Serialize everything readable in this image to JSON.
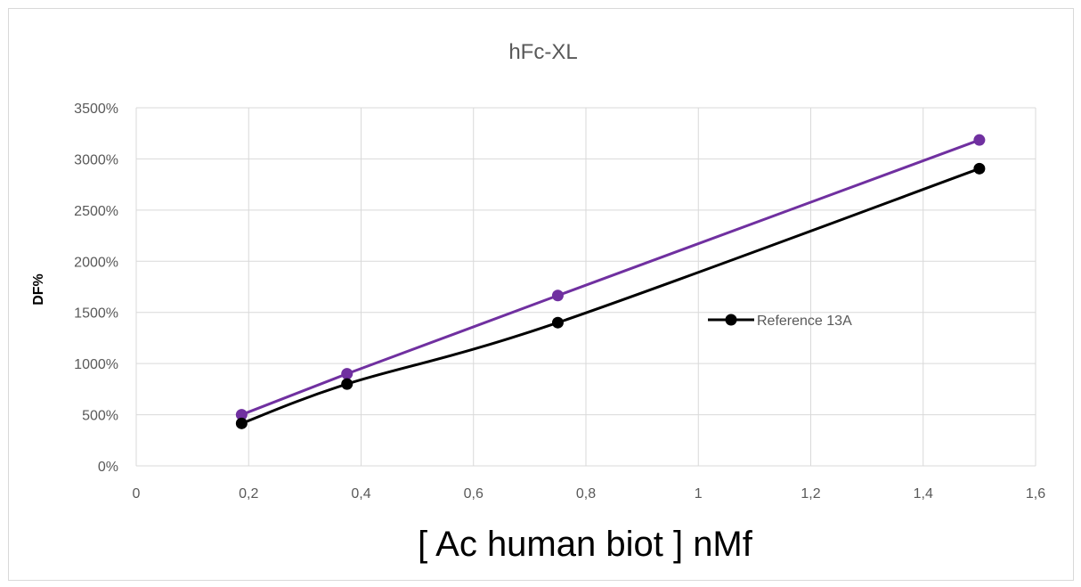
{
  "chart_data": {
    "type": "line",
    "title": "hFc-XL",
    "xlabel": "[ Ac human biot ] nMf",
    "ylabel": "DF%",
    "xlim": [
      0,
      1.6
    ],
    "ylim": [
      0,
      3500
    ],
    "x_ticks": [
      "0",
      "0,2",
      "0,4",
      "0,6",
      "0,8",
      "1",
      "1,2",
      "1,4",
      "1,6"
    ],
    "y_ticks": [
      "0%",
      "500%",
      "1000%",
      "1500%",
      "2000%",
      "2500%",
      "3000%",
      "3500%"
    ],
    "grid": true,
    "legend_position": "right",
    "series": [
      {
        "color": "#7030a0",
        "x": [
          0.1875,
          0.375,
          0.75,
          1.5
        ],
        "y": [
          500,
          900,
          1665,
          3185
        ]
      },
      {
        "name": "Reference 13A",
        "color": "#000000",
        "x": [
          0.1875,
          0.375,
          0.75,
          1.5
        ],
        "y": [
          415,
          800,
          1400,
          2905
        ]
      }
    ]
  }
}
